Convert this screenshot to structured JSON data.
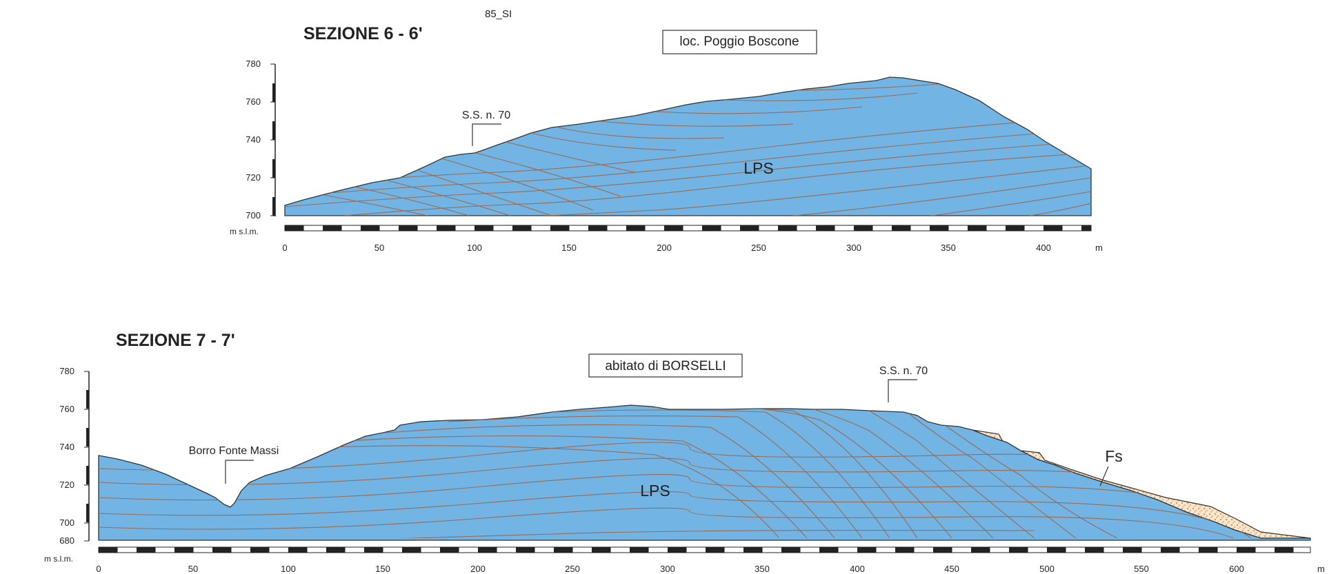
{
  "figure": {
    "code": "85_SI"
  },
  "section1": {
    "title": "SEZIONE 6 - 6'",
    "locality": "loc. Poggio Boscone",
    "unit_label": "LPS",
    "marker_label": "S.S. n. 70",
    "y_unit": "m s.l.m.",
    "x_unit": "m",
    "y_ticks": [
      "780",
      "760",
      "740",
      "720",
      "700"
    ],
    "x_ticks": [
      "0",
      "50",
      "100",
      "150",
      "200",
      "250",
      "300",
      "350",
      "400"
    ]
  },
  "section2": {
    "title": "SEZIONE 7 - 7'",
    "locality": "abitato di BORSELLI",
    "unit_label": "LPS",
    "deposit_label": "Fs",
    "marker_label": "S.S. n. 70",
    "valley_label": "Borro Fonte Massi",
    "y_unit": "m s.l.m.",
    "x_unit": "m",
    "y_ticks": [
      "780",
      "760",
      "740",
      "720",
      "700",
      "680"
    ],
    "x_ticks": [
      "0",
      "50",
      "100",
      "150",
      "200",
      "250",
      "300",
      "350",
      "400",
      "450",
      "500",
      "550",
      "600"
    ]
  },
  "colors": {
    "rock_fill": "#72b4e4",
    "bedding_line": "#9a6a52",
    "profile_line": "#333333",
    "deposit_fill": "#fbe7cf",
    "deposit_dots": "#e08a3a"
  }
}
